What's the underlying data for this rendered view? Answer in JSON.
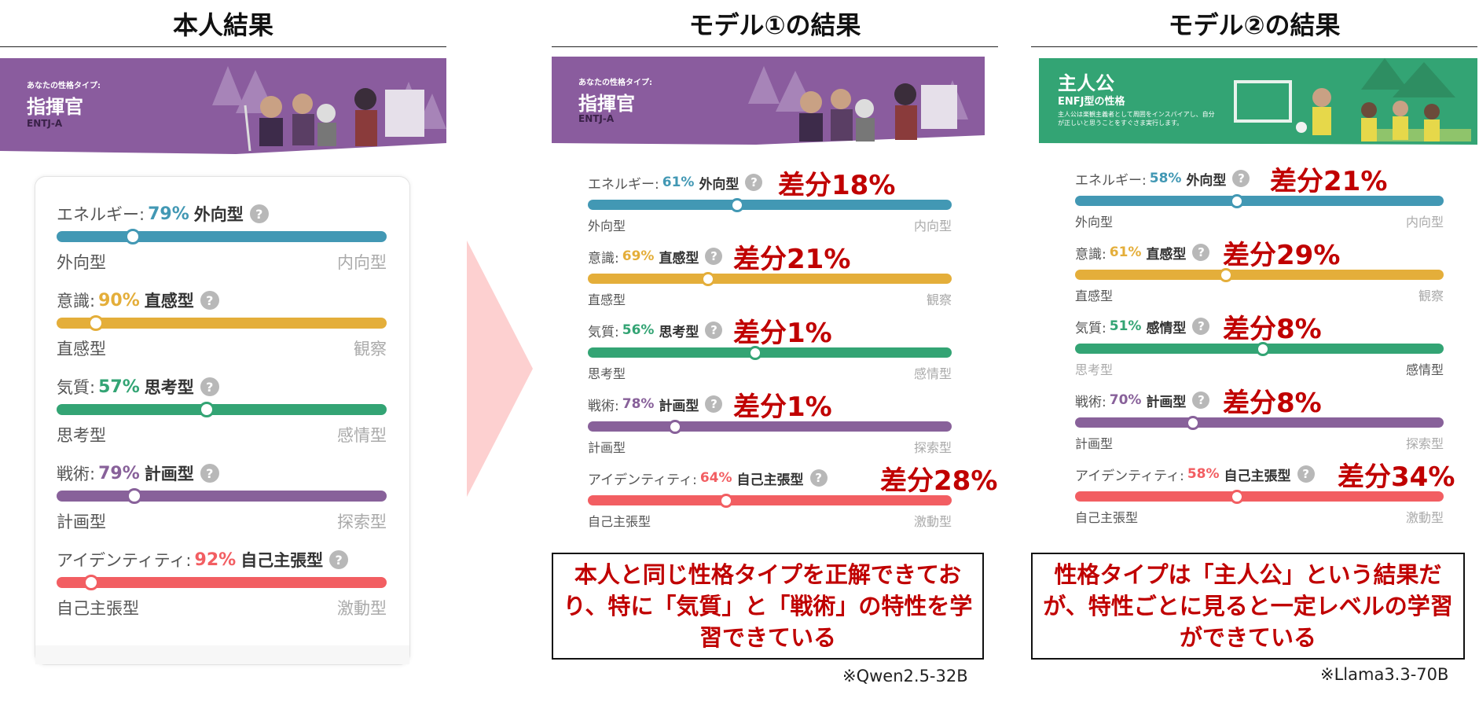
{
  "columns": [
    {
      "title": "本人結果",
      "banner": {
        "small": "あなたの性格タイプ:",
        "name": "指揮官",
        "code": "ENTJ-A",
        "color": "#8a5c9e"
      },
      "traits": [
        {
          "prefix": "エネルギー:",
          "pct": "79%",
          "name": "外向型",
          "left": "外向型",
          "right": "内向型",
          "color": "#4298b4",
          "position": 0.23
        },
        {
          "prefix": "意識:",
          "pct": "90%",
          "name": "直感型",
          "left": "直感型",
          "right": "観察",
          "color": "#e4ae3a",
          "position": 0.12
        },
        {
          "prefix": "気質:",
          "pct": "57%",
          "name": "思考型",
          "left": "思考型",
          "right": "感情型",
          "color": "#33a474",
          "position": 0.455
        },
        {
          "prefix": "戦術:",
          "pct": "79%",
          "name": "計画型",
          "left": "計画型",
          "right": "探索型",
          "color": "#88619a",
          "position": 0.235
        },
        {
          "prefix": "アイデンティティ:",
          "pct": "92%",
          "name": "自己主張型",
          "left": "自己主張型",
          "right": "激動型",
          "color": "#f25e62",
          "position": 0.105
        }
      ]
    },
    {
      "title": "モデル①の結果",
      "banner": {
        "small": "あなたの性格タイプ:",
        "name": "指揮官",
        "code": "ENTJ-A",
        "color": "#8a5c9e"
      },
      "traits": [
        {
          "prefix": "エネルギー:",
          "pct": "61%",
          "name": "外向型",
          "left": "外向型",
          "right": "内向型",
          "color": "#4298b4",
          "position": 0.41,
          "diff": "差分18%"
        },
        {
          "prefix": "意識:",
          "pct": "69%",
          "name": "直感型",
          "left": "直感型",
          "right": "観察",
          "color": "#e4ae3a",
          "position": 0.33,
          "diff": "差分21%"
        },
        {
          "prefix": "気質:",
          "pct": "56%",
          "name": "思考型",
          "left": "思考型",
          "right": "感情型",
          "color": "#33a474",
          "position": 0.46,
          "diff": "差分1%"
        },
        {
          "prefix": "戦術:",
          "pct": "78%",
          "name": "計画型",
          "left": "計画型",
          "right": "探索型",
          "color": "#88619a",
          "position": 0.24,
          "diff": "差分1%"
        },
        {
          "prefix": "アイデンティティ:",
          "pct": "64%",
          "name": "自己主張型",
          "left": "自己主張型",
          "right": "激動型",
          "color": "#f25e62",
          "position": 0.38,
          "diff": "差分28%"
        }
      ],
      "summary": "本人と同じ性格タイプを正解できており、特に「気質」と「戦術」の特性を学習できている",
      "note": "※Qwen2.5-32B"
    },
    {
      "title": "モデル②の結果",
      "banner": {
        "name": "主人公",
        "sub": "ENFJ型の性格",
        "desc": "主人公は楽観主義者として周囲をインスパイアし、自分が正しいと思うことをすぐさま実行します。",
        "color": "#33a474"
      },
      "traits": [
        {
          "prefix": "エネルギー:",
          "pct": "58%",
          "name": "外向型",
          "left": "外向型",
          "right": "内向型",
          "color": "#4298b4",
          "position": 0.44,
          "diff": "差分21%"
        },
        {
          "prefix": "意識:",
          "pct": "61%",
          "name": "直感型",
          "left": "直感型",
          "right": "観察",
          "color": "#e4ae3a",
          "position": 0.41,
          "diff": "差分29%"
        },
        {
          "prefix": "気質:",
          "pct": "51%",
          "name": "感情型",
          "left": "思考型",
          "right": "感情型",
          "color": "#33a474",
          "position": 0.51,
          "diff": "差分8%",
          "dim": "left"
        },
        {
          "prefix": "戦術:",
          "pct": "70%",
          "name": "計画型",
          "left": "計画型",
          "right": "探索型",
          "color": "#88619a",
          "position": 0.32,
          "diff": "差分8%"
        },
        {
          "prefix": "アイデンティティ:",
          "pct": "58%",
          "name": "自己主張型",
          "left": "自己主張型",
          "right": "激動型",
          "color": "#f25e62",
          "position": 0.44,
          "diff": "差分34%"
        }
      ],
      "summary": "性格タイプは「主人公」という結果だが、特性ごとに見ると一定レベルの学習ができている",
      "note": "※Llama3.3-70B"
    }
  ]
}
